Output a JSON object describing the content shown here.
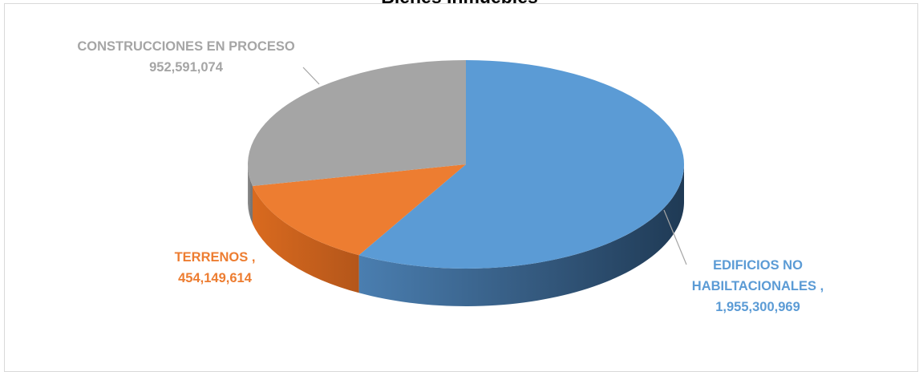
{
  "chart_data": {
    "type": "pie",
    "title": "Bienes Inmuebles",
    "slices": [
      {
        "name": "EDIFICIOS  NO HABILTACIONALES ,",
        "value": 1955300969,
        "value_label": "1,955,300,969",
        "color": "#5b9bd5",
        "label_lines": [
          "EDIFICIOS  NO",
          "HABILTACIONALES ,",
          "1,955,300,969"
        ]
      },
      {
        "name": "TERRENOS ,",
        "value": 454149614,
        "value_label": "454,149,614",
        "color": "#ed7d31",
        "label_lines": [
          "TERRENOS ,",
          "454,149,614"
        ]
      },
      {
        "name": "CONSTRUCCIONES EN PROCESO",
        "value": 952591074,
        "value_label": "952,591,074",
        "color": "#a5a5a5",
        "label_lines": [
          "CONSTRUCCIONES EN PROCESO",
          "952,591,074"
        ]
      }
    ],
    "legend": "none"
  }
}
